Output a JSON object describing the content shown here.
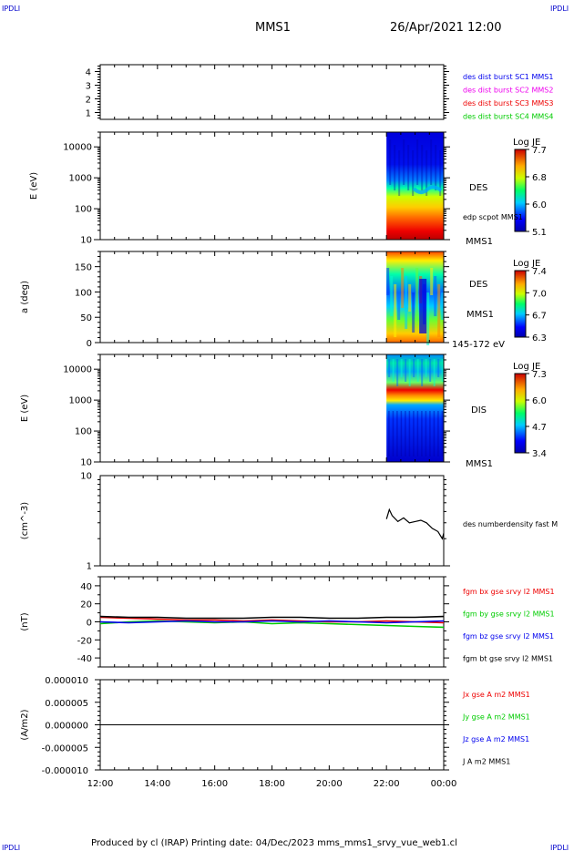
{
  "header": {
    "corner_left": "IPDLI",
    "corner_right": "IPDLI",
    "mission": "MMS1",
    "datetime": "26/Apr/2021 12:00"
  },
  "footer": {
    "text": "Produced by cl (IRAP)   Printing date: 04/Dec/2023   mms_mms1_srvy_vue_web1.cl",
    "corner_left": "IPDLI",
    "corner_right": "IPDLI"
  },
  "colors": {
    "blue": "#0000ee",
    "magenta": "#ee00ee",
    "red": "#ee0000",
    "green": "#00cc00",
    "black": "#000000"
  },
  "chart_data": [
    {
      "id": "sc-availability",
      "type": "line",
      "y_ticks": [
        "4",
        "3",
        "2",
        "1"
      ],
      "ylim": [
        0.5,
        4.5
      ],
      "legend": [
        {
          "name": "des dist burst SC1 MMS1",
          "color": "#0000ee"
        },
        {
          "name": "des dist burst SC2 MMS2",
          "color": "#ee00ee"
        },
        {
          "name": "des dist burst SC3 MMS3",
          "color": "#ee0000"
        },
        {
          "name": "des dist burst SC4 MMS4",
          "color": "#00cc00"
        }
      ]
    },
    {
      "id": "des-energy-spectrogram",
      "type": "heatmap",
      "ylabel": "E (eV)",
      "y_scale": "log",
      "ylim": [
        10,
        30000
      ],
      "y_ticks": [
        "10000",
        "1000",
        "100",
        "10"
      ],
      "data_start_hour": 22.0,
      "labels": [
        "DES",
        "edp scpot MMS1",
        "MMS1"
      ],
      "colorbar": {
        "title": "Log JE",
        "ticks": [
          "7.7",
          "6.8",
          "6.0",
          "5.1"
        ],
        "range": [
          5.1,
          7.7
        ]
      }
    },
    {
      "id": "des-pitch-angle",
      "type": "heatmap",
      "ylabel": "a (deg)",
      "ylim": [
        0,
        180
      ],
      "y_ticks": [
        "150",
        "100",
        "50",
        "0"
      ],
      "data_start_hour": 22.0,
      "labels": [
        "DES",
        "MMS1",
        "145-172 eV"
      ],
      "colorbar": {
        "title": "Log JE",
        "ticks": [
          "7.4",
          "7.0",
          "6.7",
          "6.3"
        ],
        "range": [
          6.3,
          7.4
        ]
      }
    },
    {
      "id": "dis-energy-spectrogram",
      "type": "heatmap",
      "ylabel": "E (eV)",
      "y_scale": "log",
      "ylim": [
        10,
        30000
      ],
      "y_ticks": [
        "10000",
        "1000",
        "100",
        "10"
      ],
      "data_start_hour": 22.0,
      "labels": [
        "DIS",
        "MMS1"
      ],
      "colorbar": {
        "title": "Log JE",
        "ticks": [
          "7.3",
          "6.0",
          "4.7",
          "3.4"
        ],
        "range": [
          3.4,
          7.3
        ]
      }
    },
    {
      "id": "density",
      "type": "line",
      "ylabel": "(cm^-3)",
      "y_scale": "log",
      "ylim": [
        1,
        10
      ],
      "y_ticks": [
        "10",
        "1"
      ],
      "series": [
        {
          "name": "des numberdensity fast M",
          "color": "#000000",
          "x": [
            22.0,
            22.1,
            22.2,
            22.4,
            22.6,
            22.8,
            23.0,
            23.2,
            23.4,
            23.6,
            23.8,
            23.95,
            24.0
          ],
          "y": [
            3.3,
            4.2,
            3.6,
            3.1,
            3.4,
            3.0,
            3.1,
            3.2,
            3.0,
            2.6,
            2.4,
            2.0,
            2.3
          ]
        }
      ]
    },
    {
      "id": "magnetic-field",
      "type": "line",
      "ylabel": "(nT)",
      "ylim": [
        -50,
        50
      ],
      "y_ticks": [
        "40",
        "20",
        "0",
        "-20",
        "-40"
      ],
      "series": [
        {
          "name": "fgm bx gse srvy l2 MMS1",
          "color": "#ee0000",
          "x": [
            12,
            13,
            14,
            15,
            16,
            17,
            18,
            19,
            20,
            21,
            22,
            23,
            24
          ],
          "y": [
            5,
            4,
            3,
            2,
            2,
            1,
            2,
            1,
            0,
            0,
            1,
            0,
            -1
          ]
        },
        {
          "name": "fgm by gse srvy l2 MMS1",
          "color": "#00cc00",
          "x": [
            12,
            13,
            14,
            15,
            16,
            17,
            18,
            19,
            20,
            21,
            22,
            23,
            24
          ],
          "y": [
            -2,
            0,
            1,
            0,
            -1,
            0,
            -2,
            -1,
            -2,
            -3,
            -4,
            -5,
            -6
          ]
        },
        {
          "name": "fgm bz gse srvy l2 MMS1",
          "color": "#0000ee",
          "x": [
            12,
            13,
            14,
            15,
            16,
            17,
            18,
            19,
            20,
            21,
            22,
            23,
            24
          ],
          "y": [
            0,
            -1,
            0,
            1,
            0,
            0,
            1,
            0,
            1,
            0,
            -1,
            0,
            1
          ]
        },
        {
          "name": "fgm bt gse srvy l2 MMS1",
          "color": "#000000",
          "x": [
            12,
            13,
            14,
            15,
            16,
            17,
            18,
            19,
            20,
            21,
            22,
            23,
            24
          ],
          "y": [
            6,
            5,
            5,
            4,
            4,
            4,
            5,
            5,
            4,
            4,
            5,
            5,
            6
          ]
        }
      ]
    },
    {
      "id": "current-density",
      "type": "line",
      "ylabel": "(A/m2)",
      "ylim": [
        -1e-05,
        1e-05
      ],
      "y_ticks": [
        "0.000010",
        "0.000005",
        "0.000000",
        "-0.000005",
        "-0.000010"
      ],
      "series": [
        {
          "name": "Jx gse A m2 MMS1",
          "color": "#ee0000"
        },
        {
          "name": "Jy gse A m2 MMS1",
          "color": "#00cc00"
        },
        {
          "name": "Jz gse A m2 MMS1",
          "color": "#0000ee"
        },
        {
          "name": "J A m2 MMS1",
          "color": "#000000",
          "x": [
            12,
            24
          ],
          "y": [
            0,
            0
          ]
        }
      ],
      "x_ticks": [
        "12:00",
        "14:00",
        "16:00",
        "18:00",
        "20:00",
        "22:00",
        "00:00"
      ],
      "xlim": [
        12,
        24
      ]
    }
  ]
}
